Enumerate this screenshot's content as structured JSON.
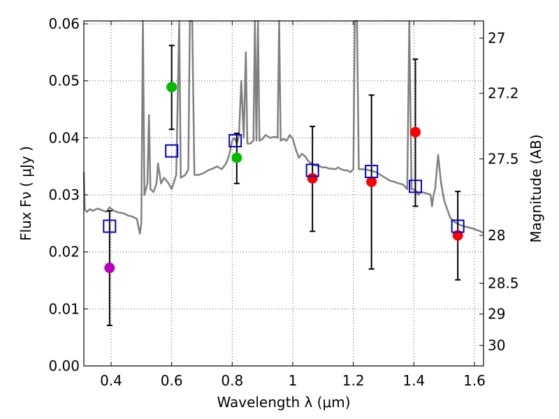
{
  "chart_data": {
    "type": "scatter",
    "title": "",
    "xlabel": "Wavelength  λ (μm)",
    "ylabel": "Flux  Fν  ( μJy )",
    "y2label": "Magnitude (AB)",
    "xlim": [
      0.31,
      1.63
    ],
    "ylim": [
      0.0,
      0.0605
    ],
    "grid": true,
    "x_ticks": [
      0.4,
      0.6,
      0.8,
      1.0,
      1.2,
      1.4,
      1.6
    ],
    "x_tick_labels": [
      "0.4",
      "0.6",
      "0.8",
      "1",
      "1.2",
      "1.4",
      "1.6"
    ],
    "y_ticks": [
      0.0,
      0.01,
      0.02,
      0.03,
      0.04,
      0.05,
      0.06
    ],
    "y_tick_labels": [
      "0.00",
      "0.01",
      "0.02",
      "0.03",
      "0.04",
      "0.05",
      "0.06"
    ],
    "y2_ticks": [
      {
        "label": "27",
        "flux": 0.0575
      },
      {
        "label": "27.2",
        "flux": 0.0478
      },
      {
        "label": "27.5",
        "flux": 0.0363
      },
      {
        "label": "28",
        "flux": 0.0229
      },
      {
        "label": "28.5",
        "flux": 0.0145
      },
      {
        "label": "29",
        "flux": 0.0091
      },
      {
        "label": "30",
        "flux": 0.0036
      }
    ],
    "observed": [
      {
        "x": 0.395,
        "y": 0.0172,
        "err_low": 0.0071,
        "err_high": 0.0272,
        "color": "#bb00bb"
      },
      {
        "x": 0.6,
        "y": 0.0489,
        "err_low": 0.0415,
        "err_high": 0.0562,
        "color": "#00bb00"
      },
      {
        "x": 0.815,
        "y": 0.0365,
        "err_low": 0.032,
        "err_high": 0.0408,
        "color": "#00bb00"
      },
      {
        "x": 1.065,
        "y": 0.0329,
        "err_low": 0.0236,
        "err_high": 0.042,
        "color": "#ff0000"
      },
      {
        "x": 1.26,
        "y": 0.0323,
        "err_low": 0.017,
        "err_high": 0.0475,
        "color": "#ff0000"
      },
      {
        "x": 1.405,
        "y": 0.041,
        "err_low": 0.028,
        "err_high": 0.0538,
        "color": "#ff0000"
      },
      {
        "x": 1.545,
        "y": 0.0229,
        "err_low": 0.0151,
        "err_high": 0.0306,
        "color": "#ff0000"
      }
    ],
    "model_band_flux": [
      {
        "x": 0.395,
        "y": 0.0245
      },
      {
        "x": 0.6,
        "y": 0.0377
      },
      {
        "x": 0.81,
        "y": 0.0395
      },
      {
        "x": 1.065,
        "y": 0.0343
      },
      {
        "x": 1.26,
        "y": 0.0341
      },
      {
        "x": 1.405,
        "y": 0.0315
      },
      {
        "x": 1.545,
        "y": 0.0245
      }
    ],
    "sed_line": {
      "color": "#808080",
      "points": [
        [
          0.31,
          0.034
        ],
        [
          0.313,
          0.0275
        ],
        [
          0.32,
          0.027
        ],
        [
          0.33,
          0.0275
        ],
        [
          0.34,
          0.0272
        ],
        [
          0.355,
          0.0276
        ],
        [
          0.37,
          0.0273
        ],
        [
          0.385,
          0.027
        ],
        [
          0.395,
          0.0278
        ],
        [
          0.41,
          0.0272
        ],
        [
          0.425,
          0.0269
        ],
        [
          0.44,
          0.0268
        ],
        [
          0.455,
          0.0264
        ],
        [
          0.47,
          0.0262
        ],
        [
          0.485,
          0.0258
        ],
        [
          0.495,
          0.0232
        ],
        [
          0.5,
          0.025
        ],
        [
          0.505,
          0.061
        ],
        [
          0.51,
          0.03
        ],
        [
          0.52,
          0.032
        ],
        [
          0.525,
          0.044
        ],
        [
          0.53,
          0.031
        ],
        [
          0.54,
          0.0305
        ],
        [
          0.55,
          0.032
        ],
        [
          0.555,
          0.0355
        ],
        [
          0.565,
          0.032
        ],
        [
          0.575,
          0.033
        ],
        [
          0.59,
          0.032
        ],
        [
          0.6,
          0.031
        ],
        [
          0.615,
          0.0335
        ],
        [
          0.625,
          0.061
        ],
        [
          0.63,
          0.033
        ],
        [
          0.645,
          0.0335
        ],
        [
          0.655,
          0.0345
        ],
        [
          0.66,
          0.061
        ],
        [
          0.668,
          0.061
        ],
        [
          0.675,
          0.0335
        ],
        [
          0.69,
          0.0335
        ],
        [
          0.705,
          0.0338
        ],
        [
          0.72,
          0.0343
        ],
        [
          0.735,
          0.0346
        ],
        [
          0.75,
          0.035
        ],
        [
          0.765,
          0.0345
        ],
        [
          0.78,
          0.0355
        ],
        [
          0.79,
          0.037
        ],
        [
          0.8,
          0.0395
        ],
        [
          0.808,
          0.04
        ],
        [
          0.815,
          0.039
        ],
        [
          0.822,
          0.0402
        ],
        [
          0.83,
          0.05
        ],
        [
          0.838,
          0.04
        ],
        [
          0.845,
          0.055
        ],
        [
          0.85,
          0.039
        ],
        [
          0.86,
          0.039
        ],
        [
          0.87,
          0.0395
        ],
        [
          0.875,
          0.061
        ],
        [
          0.88,
          0.0395
        ],
        [
          0.885,
          0.061
        ],
        [
          0.89,
          0.0395
        ],
        [
          0.9,
          0.0398
        ],
        [
          0.91,
          0.0405
        ],
        [
          0.925,
          0.04
        ],
        [
          0.94,
          0.0402
        ],
        [
          0.95,
          0.04
        ],
        [
          0.955,
          0.061
        ],
        [
          0.96,
          0.0395
        ],
        [
          0.97,
          0.0398
        ],
        [
          0.98,
          0.0395
        ],
        [
          0.99,
          0.0405
        ],
        [
          1.0,
          0.0398
        ],
        [
          1.01,
          0.038
        ],
        [
          1.02,
          0.0365
        ],
        [
          1.03,
          0.0372
        ],
        [
          1.04,
          0.0368
        ],
        [
          1.05,
          0.036
        ],
        [
          1.06,
          0.0355
        ],
        [
          1.07,
          0.0352
        ],
        [
          1.08,
          0.0351
        ],
        [
          1.09,
          0.035
        ],
        [
          1.1,
          0.0348
        ],
        [
          1.11,
          0.0348
        ],
        [
          1.12,
          0.0346
        ],
        [
          1.13,
          0.0346
        ],
        [
          1.14,
          0.0345
        ],
        [
          1.15,
          0.0348
        ],
        [
          1.16,
          0.0345
        ],
        [
          1.17,
          0.0343
        ],
        [
          1.18,
          0.0343
        ],
        [
          1.19,
          0.034
        ],
        [
          1.2,
          0.0345
        ],
        [
          1.205,
          0.061
        ],
        [
          1.212,
          0.061
        ],
        [
          1.218,
          0.0345
        ],
        [
          1.23,
          0.0345
        ],
        [
          1.245,
          0.0344
        ],
        [
          1.26,
          0.0342
        ],
        [
          1.275,
          0.034
        ],
        [
          1.29,
          0.0335
        ],
        [
          1.305,
          0.033
        ],
        [
          1.32,
          0.0325
        ],
        [
          1.335,
          0.0323
        ],
        [
          1.35,
          0.032
        ],
        [
          1.365,
          0.0318
        ],
        [
          1.378,
          0.031
        ],
        [
          1.385,
          0.061
        ],
        [
          1.392,
          0.031
        ],
        [
          1.4,
          0.031
        ],
        [
          1.41,
          0.0305
        ],
        [
          1.415,
          0.03
        ],
        [
          1.425,
          0.0305
        ],
        [
          1.44,
          0.0303
        ],
        [
          1.455,
          0.03
        ],
        [
          1.46,
          0.028
        ],
        [
          1.465,
          0.03
        ],
        [
          1.47,
          0.031
        ],
        [
          1.48,
          0.037
        ],
        [
          1.49,
          0.032
        ],
        [
          1.5,
          0.029
        ],
        [
          1.51,
          0.0275
        ],
        [
          1.52,
          0.026
        ],
        [
          1.535,
          0.0252
        ],
        [
          1.55,
          0.0248
        ],
        [
          1.565,
          0.0245
        ],
        [
          1.58,
          0.0243
        ],
        [
          1.595,
          0.0241
        ],
        [
          1.61,
          0.0238
        ],
        [
          1.62,
          0.0236
        ],
        [
          1.63,
          0.0233
        ]
      ]
    }
  }
}
